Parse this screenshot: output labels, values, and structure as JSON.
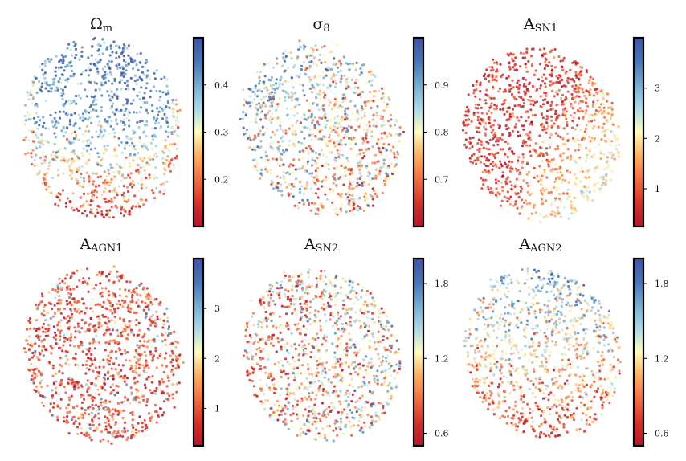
{
  "chart_data": [
    {
      "type": "scatter",
      "title": "Ω",
      "title_sub": "m",
      "colormap": "RdYlBu",
      "color_range": [
        0.1,
        0.5
      ],
      "color_ticks": [
        0.2,
        0.3,
        0.4
      ],
      "tick_labels": [
        "0.2",
        "0.3",
        "0.4"
      ],
      "pattern": "Low values (red) concentrated in the lower part of the cloud; high values (blue) in the upper part",
      "points": 1100
    },
    {
      "type": "scatter",
      "title": "σ",
      "title_sub": "8",
      "colormap": "RdYlBu",
      "color_range": [
        0.6,
        1.0
      ],
      "color_ticks": [
        0.7,
        0.8,
        0.9
      ],
      "tick_labels": [
        "0.7",
        "0.8",
        "0.9"
      ],
      "pattern": "Higher values (blue) toward the upper-left edge; mixed elsewhere",
      "points": 1100
    },
    {
      "type": "scatter",
      "title": "A",
      "title_sub": "SN1",
      "colormap": "RdYlBu",
      "color_range": [
        0.25,
        4.0
      ],
      "color_ticks": [
        1,
        2,
        3
      ],
      "tick_labels": [
        "1",
        "2",
        "3"
      ],
      "pattern": "Low values (red) dominate the upper-left; higher values (blue) toward the lower-right",
      "points": 1100
    },
    {
      "type": "scatter",
      "title": "A",
      "title_sub": "AGN1",
      "colormap": "RdYlBu",
      "color_range": [
        0.25,
        4.0
      ],
      "color_ticks": [
        1,
        2,
        3
      ],
      "tick_labels": [
        "1",
        "2",
        "3"
      ],
      "pattern": "Mostly low values (red) scattered uniformly",
      "points": 1100
    },
    {
      "type": "scatter",
      "title": "A",
      "title_sub": "SN2",
      "colormap": "RdYlBu",
      "color_range": [
        0.5,
        2.0
      ],
      "color_ticks": [
        0.6,
        1.2,
        1.8
      ],
      "tick_labels": [
        "0.6",
        "1.2",
        "1.8"
      ],
      "pattern": "Mixed values with slightly more high values toward the right",
      "points": 1100
    },
    {
      "type": "scatter",
      "title": "A",
      "title_sub": "AGN2",
      "colormap": "RdYlBu",
      "color_range": [
        0.5,
        2.0
      ],
      "color_ticks": [
        0.6,
        1.2,
        1.8
      ],
      "tick_labels": [
        "0.6",
        "1.2",
        "1.8"
      ],
      "pattern": "Higher values (blue) toward the upper part; lower values (red) toward the lower part",
      "points": 1100
    }
  ]
}
